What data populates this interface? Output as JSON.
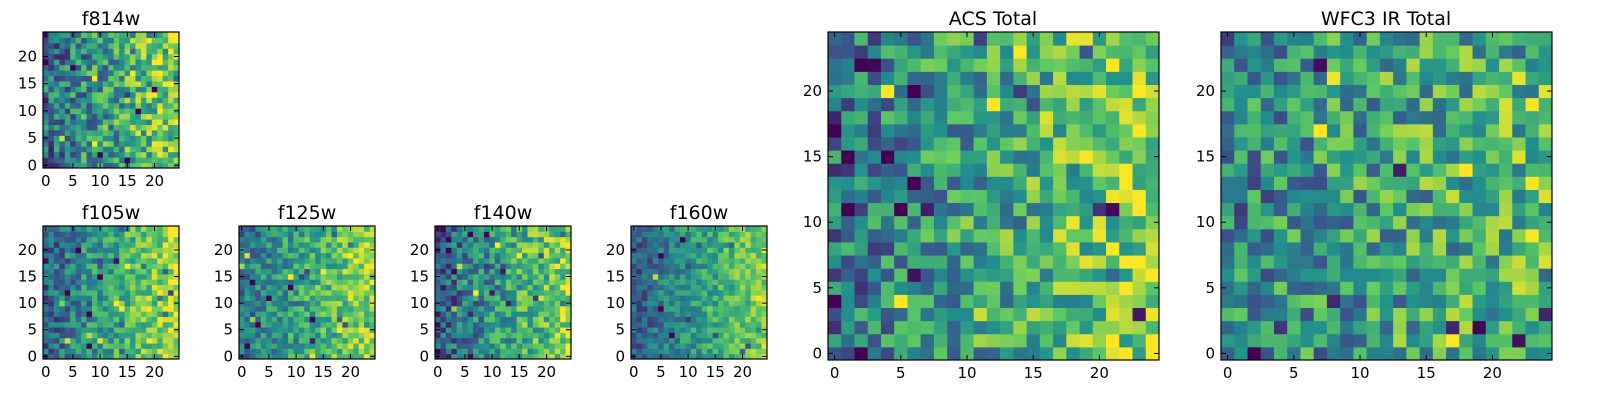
{
  "figure": {
    "colormap": [
      "#440154",
      "#3b528b",
      "#21908c",
      "#5dc863",
      "#fde725"
    ],
    "panels": [
      {
        "key": "f814w",
        "title": "f814w",
        "xticks": [
          "0",
          "5",
          "10",
          "15",
          "20"
        ],
        "yticks": [
          "0",
          "5",
          "10",
          "15",
          "20"
        ]
      },
      {
        "key": "f105w",
        "title": "f105w",
        "xticks": [
          "0",
          "5",
          "10",
          "15",
          "20"
        ],
        "yticks": [
          "0",
          "5",
          "10",
          "15",
          "20"
        ]
      },
      {
        "key": "f125w",
        "title": "f125w",
        "xticks": [
          "0",
          "5",
          "10",
          "15",
          "20"
        ],
        "yticks": [
          "0",
          "5",
          "10",
          "15",
          "20"
        ]
      },
      {
        "key": "f140w",
        "title": "f140w",
        "xticks": [
          "0",
          "5",
          "10",
          "15",
          "20"
        ],
        "yticks": [
          "0",
          "5",
          "10",
          "15",
          "20"
        ]
      },
      {
        "key": "f160w",
        "title": "f160w",
        "xticks": [
          "0",
          "5",
          "10",
          "15",
          "20"
        ],
        "yticks": [
          "0",
          "5",
          "10",
          "15",
          "20"
        ]
      },
      {
        "key": "acs",
        "title": "ACS Total",
        "xticks": [
          "0",
          "5",
          "10",
          "15",
          "20"
        ],
        "yticks": [
          "0",
          "5",
          "10",
          "15",
          "20"
        ]
      },
      {
        "key": "wfc3",
        "title": "WFC3 IR Total",
        "xticks": [
          "0",
          "5",
          "10",
          "15",
          "20"
        ],
        "yticks": [
          "0",
          "5",
          "10",
          "15",
          "20"
        ]
      }
    ]
  },
  "chart_data": [
    {
      "type": "heatmap",
      "title": "f814w",
      "nx": 25,
      "ny": 25,
      "xlim": [
        -0.5,
        24.5
      ],
      "ylim": [
        -0.5,
        24.5
      ],
      "gradient": 0.45,
      "noise": 0.3,
      "base": 0.35,
      "seed": 11
    },
    {
      "type": "heatmap",
      "title": "f105w",
      "nx": 25,
      "ny": 25,
      "xlim": [
        -0.5,
        24.5
      ],
      "ylim": [
        -0.5,
        24.5
      ],
      "gradient": 0.55,
      "noise": 0.22,
      "base": 0.32,
      "seed": 23
    },
    {
      "type": "heatmap",
      "title": "f125w",
      "nx": 25,
      "ny": 25,
      "xlim": [
        -0.5,
        24.5
      ],
      "ylim": [
        -0.5,
        24.5
      ],
      "gradient": 0.45,
      "noise": 0.22,
      "base": 0.38,
      "seed": 37
    },
    {
      "type": "heatmap",
      "title": "f140w",
      "nx": 25,
      "ny": 25,
      "xlim": [
        -0.5,
        24.5
      ],
      "ylim": [
        -0.5,
        24.5
      ],
      "gradient": 0.55,
      "noise": 0.25,
      "base": 0.28,
      "seed": 41
    },
    {
      "type": "heatmap",
      "title": "f160w",
      "nx": 25,
      "ny": 25,
      "xlim": [
        -0.5,
        24.5
      ],
      "ylim": [
        -0.5,
        24.5
      ],
      "gradient": 0.5,
      "noise": 0.18,
      "base": 0.3,
      "seed": 53
    },
    {
      "type": "heatmap",
      "title": "ACS Total",
      "nx": 25,
      "ny": 25,
      "xlim": [
        -0.5,
        24.5
      ],
      "ylim": [
        -0.5,
        24.5
      ],
      "gradient": 0.4,
      "noise": 0.28,
      "base": 0.4,
      "seed": 67
    },
    {
      "type": "heatmap",
      "title": "WFC3 IR Total",
      "nx": 25,
      "ny": 25,
      "xlim": [
        -0.5,
        24.5
      ],
      "ylim": [
        -0.5,
        24.5
      ],
      "gradient": 0.25,
      "noise": 0.3,
      "base": 0.45,
      "seed": 79
    }
  ]
}
